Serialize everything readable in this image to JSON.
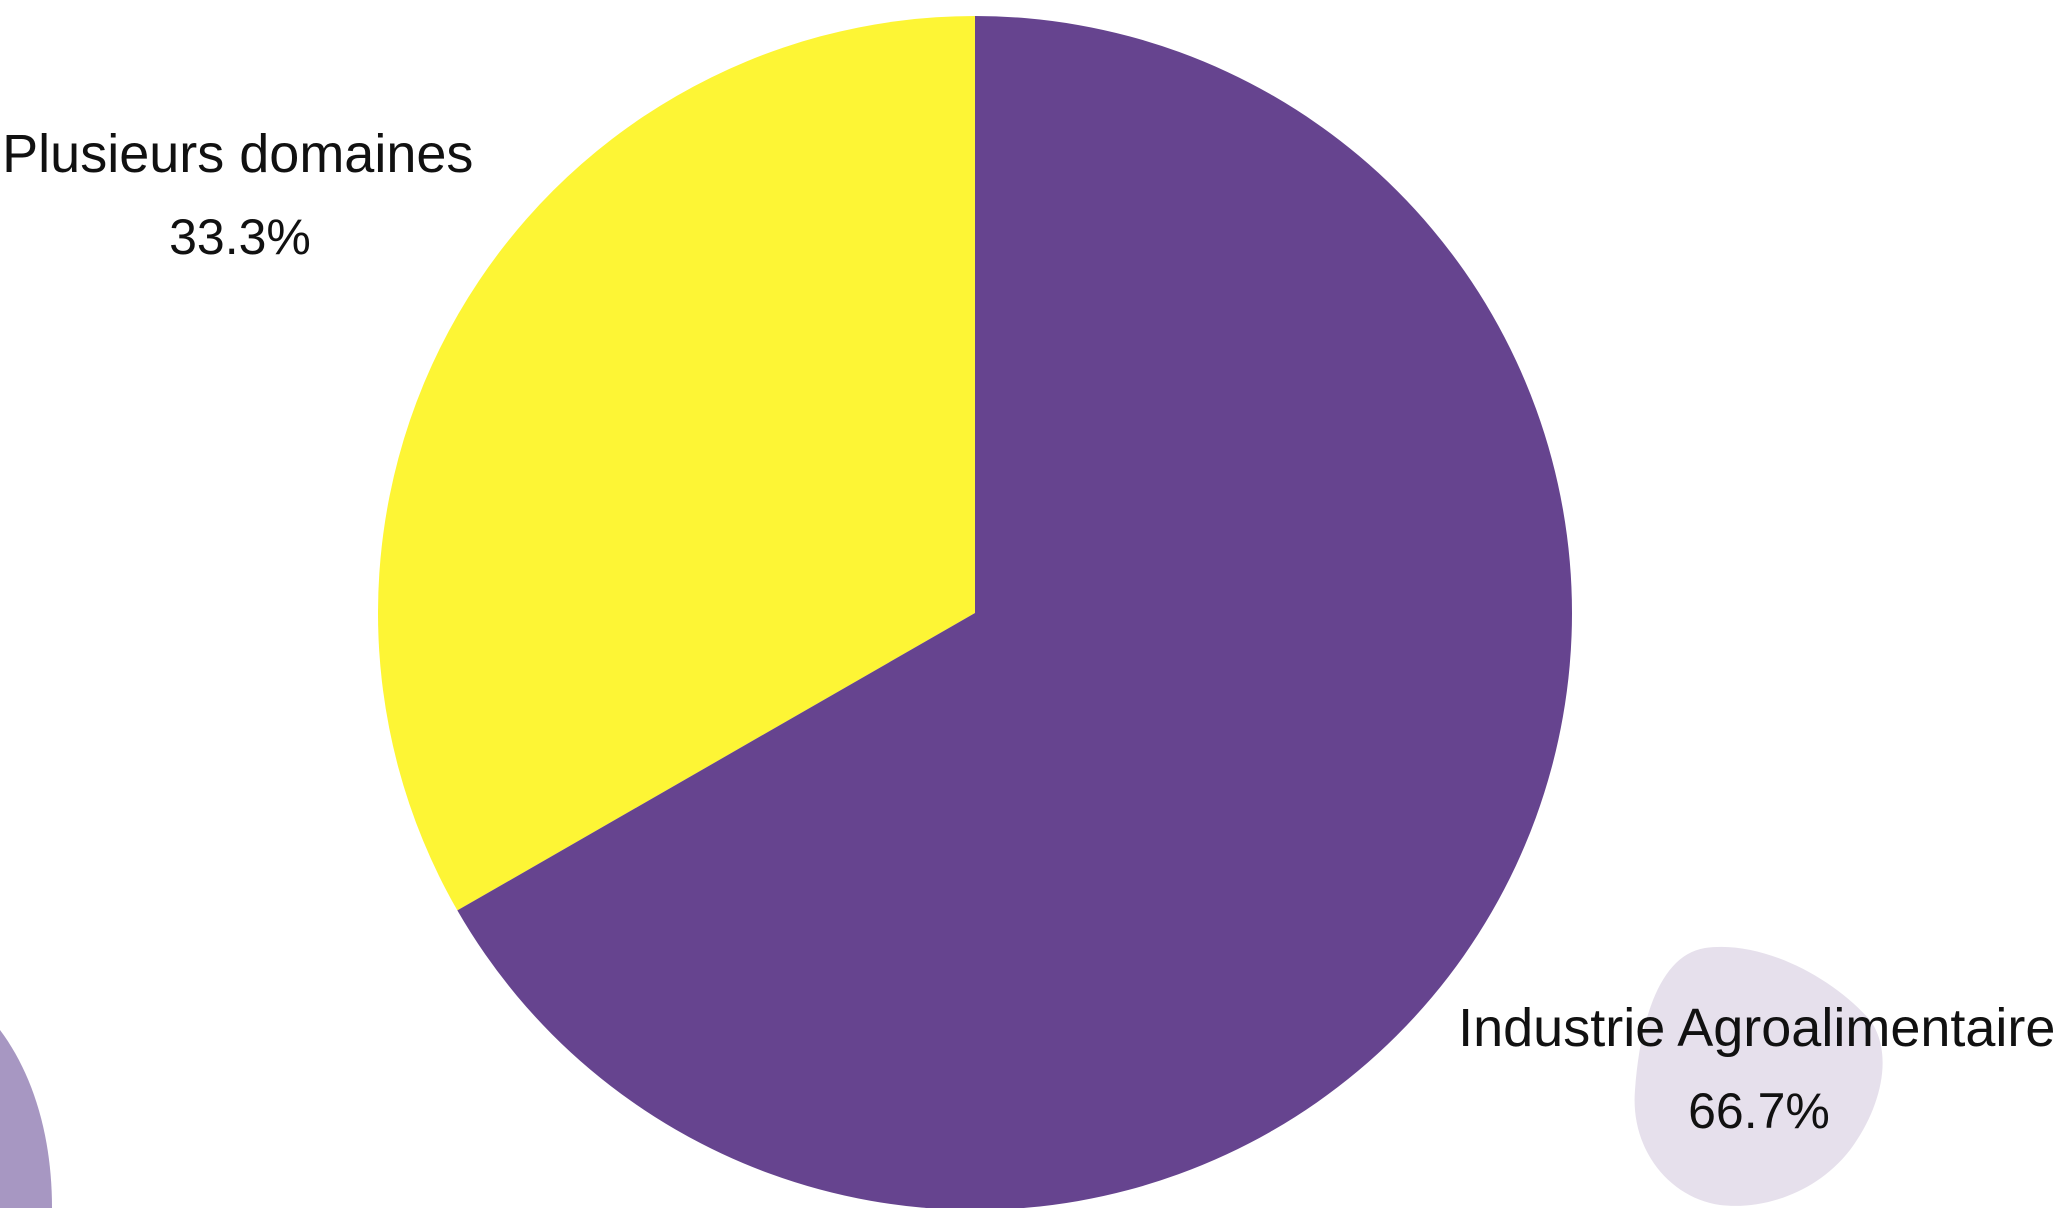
{
  "chart_data": {
    "type": "pie",
    "slices": [
      {
        "label": "Plusieurs domaines",
        "percent_label": "33.3%",
        "value": 33.3,
        "color": "#FDF535"
      },
      {
        "label": "Industrie Agroalimentaire",
        "percent_label": "66.7%",
        "value": 66.7,
        "color": "#66448F"
      }
    ],
    "start_angle": "12 o'clock",
    "direction": "counter-clockwise"
  },
  "decor_colors": {
    "blob_light": "#E6E0EC",
    "blob_corner": "#A797C2"
  }
}
